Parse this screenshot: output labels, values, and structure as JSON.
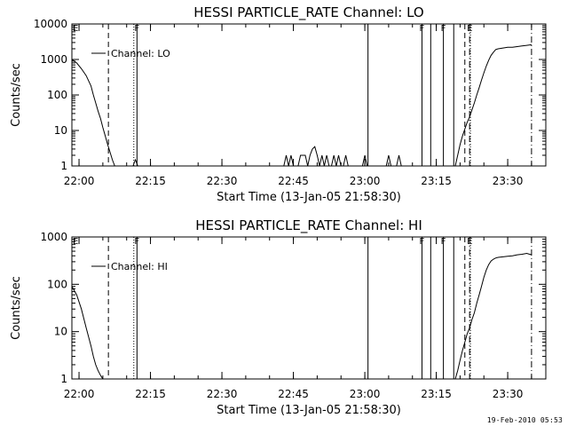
{
  "footer": {
    "date": "19-Feb-2010 05:53"
  },
  "chart_data": [
    {
      "type": "line",
      "title": "HESSI PARTICLE_RATE Channel: LO",
      "xlabel": "Start Time (13-Jan-05 21:58:30)",
      "ylabel": "Counts/sec",
      "y_scale": "log",
      "xlim": [
        "21:58:30",
        "23:38:00"
      ],
      "ylim": [
        1,
        10000
      ],
      "x_ticks": [
        "22:00",
        "22:15",
        "22:30",
        "22:45",
        "23:00",
        "23:15",
        "23:30"
      ],
      "y_ticks": [
        "1",
        "10",
        "100",
        "1000",
        "10000"
      ],
      "grid": false,
      "legend": {
        "position": "top-left",
        "entries": [
          "Channel: LO"
        ]
      },
      "series": [
        {
          "name": "Channel: LO",
          "segments": [
            {
              "x": [
                "21:58:30",
                "21:59:30",
                "22:00:30",
                "22:01:30",
                "22:02:30",
                "22:03:00",
                "22:03:30",
                "22:04:00",
                "22:04:30",
                "22:05:00",
                "22:05:30",
                "22:06:00",
                "22:06:30",
                "22:07:00",
                "22:07:30"
              ],
              "y": [
                1000,
                800,
                550,
                350,
                180,
                100,
                60,
                35,
                22,
                12,
                7,
                4,
                2.5,
                1.5,
                1
              ]
            },
            {
              "x": [
                "22:11:20",
                "22:11:50",
                "22:12:20"
              ],
              "y": [
                1,
                1.5,
                1
              ]
            },
            {
              "x": [
                "22:43:00",
                "22:43:30",
                "22:44:00",
                "22:44:30",
                "22:45:00",
                "22:45:30",
                "22:46:00",
                "22:46:30",
                "22:47:00",
                "22:47:30",
                "22:48:00",
                "22:48:30",
                "22:49:00",
                "22:49:30",
                "22:50:00",
                "22:50:30",
                "22:51:00",
                "22:51:30",
                "22:52:00",
                "22:52:30",
                "22:53:00",
                "22:53:30",
                "22:54:00",
                "22:54:30",
                "22:55:00",
                "22:55:30",
                "22:56:00",
                "22:56:30"
              ],
              "y": [
                1,
                2,
                1,
                2,
                1,
                1,
                1,
                2,
                2,
                2,
                1,
                2,
                3,
                3.5,
                2,
                1,
                2,
                1,
                2,
                1,
                1,
                2,
                1,
                2,
                1,
                1,
                2,
                1
              ]
            },
            {
              "x": [
                "22:59:30",
                "23:00:00",
                "23:00:30"
              ],
              "y": [
                1,
                2,
                1
              ]
            },
            {
              "x": [
                "23:04:30",
                "23:05:00",
                "23:05:30"
              ],
              "y": [
                1,
                2,
                1
              ]
            },
            {
              "x": [
                "23:06:40",
                "23:07:10",
                "23:07:40"
              ],
              "y": [
                1,
                2,
                1
              ]
            },
            {
              "x": [
                "23:19:00",
                "23:19:30",
                "23:20:00",
                "23:20:30",
                "23:21:00",
                "23:21:30",
                "23:22:00",
                "23:22:30",
                "23:23:00",
                "23:23:30",
                "23:24:00",
                "23:24:30",
                "23:25:00",
                "23:25:30",
                "23:26:00",
                "23:26:30",
                "23:27:00",
                "23:27:30",
                "23:28:00",
                "23:29:00",
                "23:30:00",
                "23:31:00",
                "23:32:00",
                "23:33:00",
                "23:34:00",
                "23:35:00"
              ],
              "y": [
                1,
                2,
                4,
                7,
                11,
                17,
                24,
                38,
                60,
                100,
                160,
                260,
                420,
                650,
                950,
                1300,
                1600,
                1900,
                2000,
                2100,
                2200,
                2200,
                2300,
                2400,
                2500,
                2600
              ]
            }
          ]
        }
      ],
      "markers": [
        {
          "kind": "dashed",
          "x": "22:06:10"
        },
        {
          "kind": "dotted",
          "x": "22:11:30"
        },
        {
          "kind": "solid",
          "x": "22:12:10",
          "label": "F"
        },
        {
          "kind": "solid",
          "x": "23:00:40"
        },
        {
          "kind": "solid",
          "x": "23:12:00",
          "label": "F"
        },
        {
          "kind": "solid",
          "x": "23:13:50"
        },
        {
          "kind": "solid",
          "x": "23:16:30",
          "label": "F"
        },
        {
          "kind": "solid",
          "x": "23:18:40"
        },
        {
          "kind": "dashed",
          "x": "23:21:00"
        },
        {
          "kind": "dotted",
          "x": "23:22:10"
        },
        {
          "kind": "dashdot",
          "x": "23:22:00",
          "label": "E"
        },
        {
          "kind": "dashdot",
          "x": "23:35:00"
        }
      ],
      "corner_marker": {
        "x": "21:58:30",
        "label": "E"
      }
    },
    {
      "type": "line",
      "title": "HESSI PARTICLE_RATE Channel: HI",
      "xlabel": "Start Time (13-Jan-05 21:58:30)",
      "ylabel": "Counts/sec",
      "y_scale": "log",
      "xlim": [
        "21:58:30",
        "23:38:00"
      ],
      "ylim": [
        1,
        1000
      ],
      "x_ticks": [
        "22:00",
        "22:15",
        "22:30",
        "22:45",
        "23:00",
        "23:15",
        "23:30"
      ],
      "y_ticks": [
        "1",
        "10",
        "100",
        "1000"
      ],
      "grid": false,
      "legend": {
        "position": "top-left",
        "entries": [
          "Channel: HI"
        ]
      },
      "series": [
        {
          "name": "Channel: HI",
          "segments": [
            {
              "x": [
                "21:58:30",
                "21:59:30",
                "22:00:30",
                "22:01:30",
                "22:02:30",
                "22:03:00",
                "22:03:30",
                "22:04:00",
                "22:04:30",
                "22:05:00"
              ],
              "y": [
                90,
                60,
                30,
                12,
                5,
                3,
                2,
                1.5,
                1.2,
                1
              ]
            },
            {
              "x": [
                "23:19:00",
                "23:19:30",
                "23:20:00",
                "23:20:30",
                "23:21:00",
                "23:21:30",
                "23:22:00",
                "23:22:30",
                "23:23:00",
                "23:23:30",
                "23:24:00",
                "23:24:30",
                "23:25:00",
                "23:25:30",
                "23:26:00",
                "23:26:30",
                "23:27:00",
                "23:27:30",
                "23:28:00",
                "23:29:00",
                "23:30:00",
                "23:31:00",
                "23:32:00",
                "23:33:00",
                "23:34:00",
                "23:35:00"
              ],
              "y": [
                1,
                1.5,
                2.5,
                4,
                6,
                9,
                12,
                18,
                25,
                40,
                60,
                90,
                140,
                200,
                260,
                310,
                340,
                360,
                370,
                380,
                390,
                400,
                420,
                430,
                450,
                420
              ]
            }
          ]
        }
      ],
      "markers": [
        {
          "kind": "dashed",
          "x": "22:06:10"
        },
        {
          "kind": "dotted",
          "x": "22:11:30"
        },
        {
          "kind": "solid",
          "x": "22:12:10",
          "label": "F"
        },
        {
          "kind": "solid",
          "x": "23:00:40"
        },
        {
          "kind": "solid",
          "x": "23:12:00",
          "label": "F"
        },
        {
          "kind": "solid",
          "x": "23:13:50"
        },
        {
          "kind": "solid",
          "x": "23:16:30",
          "label": "F"
        },
        {
          "kind": "solid",
          "x": "23:18:40"
        },
        {
          "kind": "dashed",
          "x": "23:21:00"
        },
        {
          "kind": "dotted",
          "x": "23:22:10"
        },
        {
          "kind": "dashdot",
          "x": "23:22:00",
          "label": "E"
        },
        {
          "kind": "dashdot",
          "x": "23:35:00"
        }
      ],
      "corner_marker": {
        "x": "21:58:30",
        "label": "E"
      }
    }
  ]
}
